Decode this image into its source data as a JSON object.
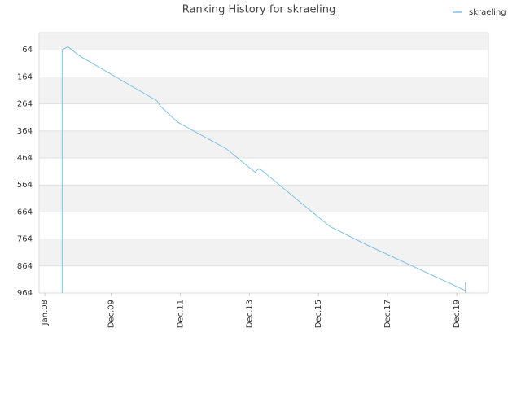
{
  "chart_data": {
    "type": "line",
    "title": "Ranking History for skraeling",
    "x": [
      "2008-07",
      "2008-07",
      "2008-09",
      "2009-01",
      "2011-04",
      "2011-05",
      "2011-11",
      "2013-04",
      "2014-02",
      "2014-03",
      "2014-04",
      "2015-05",
      "2016-04",
      "2017-05",
      "2020-03",
      "2020-03",
      "2020-03"
    ],
    "series": [
      {
        "name": "skraeling",
        "color": "#7cc1ec",
        "values": [
          964,
          64,
          52,
          86,
          253,
          271,
          331,
          430,
          517,
          505,
          507,
          622,
          718,
          787,
          955,
          925,
          964
        ]
      }
    ],
    "xlim": [
      "2007-11",
      "2020-11"
    ],
    "xticks": [
      {
        "value": "2008-01",
        "label": "Jan.08"
      },
      {
        "value": "2009-12",
        "label": "Dec.09"
      },
      {
        "value": "2011-12",
        "label": "Dec.11"
      },
      {
        "value": "2013-12",
        "label": "Dec.13"
      },
      {
        "value": "2015-12",
        "label": "Dec.15"
      },
      {
        "value": "2017-12",
        "label": "Dec.17"
      },
      {
        "value": "2019-12",
        "label": "Dec.19"
      }
    ],
    "ylim": [
      964,
      0
    ],
    "yticks": [
      64,
      164,
      264,
      364,
      464,
      564,
      664,
      764,
      864,
      964
    ],
    "legend": "top-right"
  }
}
